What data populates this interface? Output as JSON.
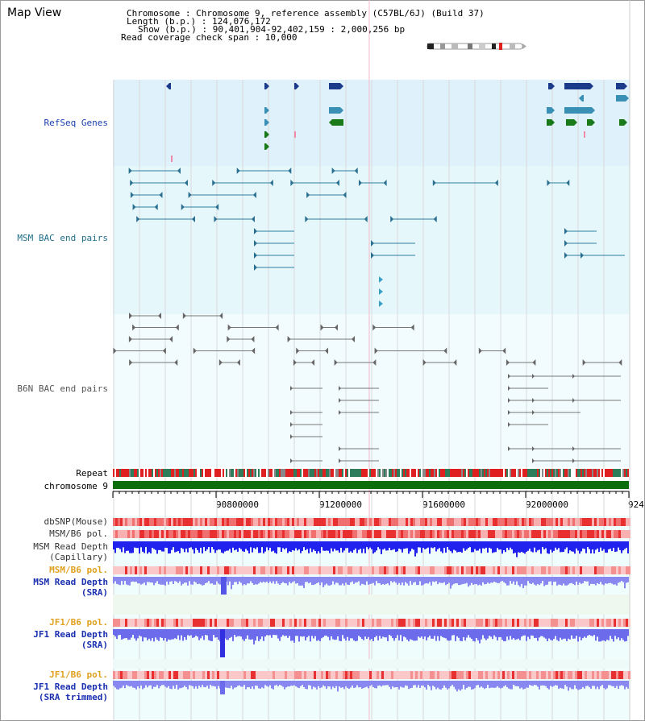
{
  "view": {
    "title": "Map View",
    "chromosome_line": "Chromosome       : Chromosome 9, reference assembly (C57BL/6J) (Build 37)",
    "length_line": "Length (b.p.) : 124,076,172",
    "show_line": "Show (b.p.) : 90,401,904-92,402,159 : 2,000,256 bp",
    "coverage_line": "Read coverage check span : 10,000"
  },
  "ideogram": {
    "highlight_color": "#dd2222"
  },
  "tracks": {
    "refseq_label": "RefSeq Genes",
    "msm_bac_label": "MSM BAC end pairs",
    "b6n_bac_label": "B6N BAC end pairs",
    "repeat_label": "Repeat",
    "chromosome_label": "chromosome 9",
    "dbsnp_label": "dbSNP(Mouse)",
    "msm_b6_pol_label": "MSM/B6 pol.",
    "msm_read_depth_cap_label_1": "MSM Read Depth",
    "msm_read_depth_cap_label_2": "(Capillary)",
    "msm_b6_pol2_label": "MSM/B6 pol.",
    "msm_read_depth_sra_label_1": "MSM Read Depth",
    "msm_read_depth_sra_label_2": "(SRA)",
    "jf1_b6_pol_label": "JF1/B6 pol.",
    "jf1_read_depth_sra_label_1": "JF1 Read Depth",
    "jf1_read_depth_sra_label_2": "(SRA)",
    "jf1_b6_pol2_label": "JF1/B6 pol.",
    "jf1_read_depth_trim_label_1": "JF1 Read Depth",
    "jf1_read_depth_trim_label_2": "(SRA trimmed)"
  },
  "scale": {
    "tick_labels": [
      "90800000",
      "91200000",
      "91600000",
      "92000000",
      "924"
    ]
  },
  "colors": {
    "refseq_bg": "#dff1fb",
    "msm_bg": "#e6f7fb",
    "track_bg": "#f0fdfd",
    "refseq_label": "#1a3fb0",
    "msm_label": "#1e6e8a",
    "b6n_label": "#555555",
    "orange_label": "#e0a020",
    "blue_label": "#1a2fb0",
    "msm_feature": "#2a7fa0",
    "b6n_feature": "#777777",
    "depth_bar": "#2222ee",
    "depth_bar_light": "#8888f0",
    "chrom_bar": "#0b6e0b"
  }
}
